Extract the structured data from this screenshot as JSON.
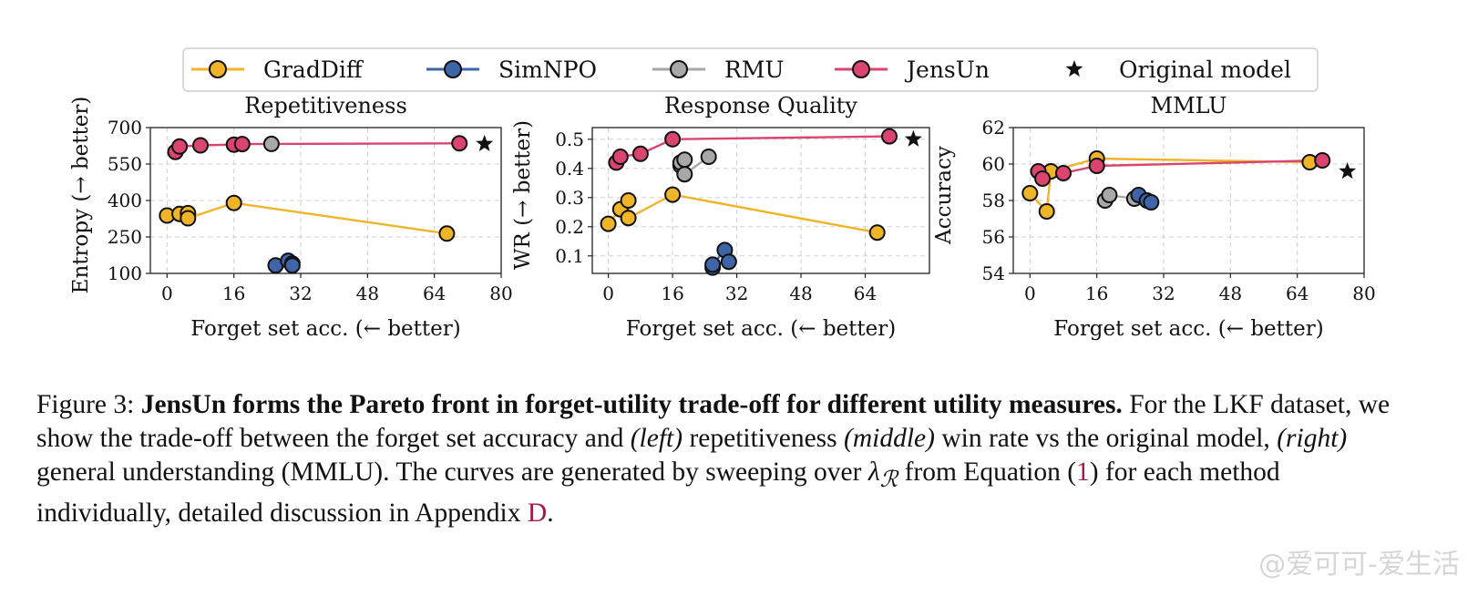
{
  "legend": {
    "items": [
      {
        "label": "GradDiff",
        "color": "#f0b429",
        "type": "line"
      },
      {
        "label": "SimNPO",
        "color": "#3f64a8",
        "type": "line"
      },
      {
        "label": "RMU",
        "color": "#a8a8a8",
        "type": "line"
      },
      {
        "label": "JensUn",
        "color": "#d9456f",
        "type": "line"
      },
      {
        "label": "Original model",
        "color": "#111111",
        "type": "star"
      }
    ]
  },
  "chart_data": [
    {
      "type": "line",
      "title": "Repetitiveness",
      "xlabel": "Forget set acc. (← better)",
      "ylabel": "Entropy (→ better)",
      "xlim": [
        -4,
        80
      ],
      "ylim": [
        100,
        700
      ],
      "xticks": [
        0,
        16,
        32,
        48,
        64,
        80
      ],
      "yticks": [
        100,
        250,
        400,
        550,
        700
      ],
      "grid": true,
      "series": [
        {
          "name": "GradDiff",
          "color": "#f0b429",
          "points": [
            [
              0,
              338
            ],
            [
              3,
              345
            ],
            [
              5,
              348
            ],
            [
              5,
              327
            ],
            [
              16,
              390
            ],
            [
              67,
              264
            ]
          ]
        },
        {
          "name": "SimNPO",
          "color": "#3f64a8",
          "points": [
            [
              26,
              133
            ],
            [
              29,
              152
            ],
            [
              30,
              140
            ],
            [
              30,
              133
            ]
          ]
        },
        {
          "name": "RMU",
          "color": "#a8a8a8",
          "points": [
            [
              25,
              633
            ]
          ]
        },
        {
          "name": "JensUn",
          "color": "#d9456f",
          "points": [
            [
              2,
              600
            ],
            [
              3,
              622
            ],
            [
              8,
              627
            ],
            [
              16,
              630
            ],
            [
              18,
              632
            ],
            [
              70,
              635
            ]
          ]
        }
      ],
      "original": [
        76,
        633
      ]
    },
    {
      "type": "line",
      "title": "Response Quality",
      "xlabel": "Forget set acc. (← better)",
      "ylabel": "WR (→ better)",
      "xlim": [
        -4,
        80
      ],
      "ylim": [
        0.04,
        0.54
      ],
      "xticks": [
        0,
        16,
        32,
        48,
        64
      ],
      "yticks": [
        0.1,
        0.2,
        0.3,
        0.4,
        0.5
      ],
      "grid": true,
      "series": [
        {
          "name": "GradDiff",
          "color": "#f0b429",
          "points": [
            [
              0,
              0.21
            ],
            [
              3,
              0.26
            ],
            [
              5,
              0.29
            ],
            [
              5,
              0.23
            ],
            [
              16,
              0.31
            ],
            [
              67,
              0.18
            ]
          ]
        },
        {
          "name": "SimNPO",
          "color": "#3f64a8",
          "points": [
            [
              26,
              0.06
            ],
            [
              26,
              0.07
            ],
            [
              29,
              0.12
            ],
            [
              30,
              0.08
            ]
          ]
        },
        {
          "name": "RMU",
          "color": "#a8a8a8",
          "points": [
            [
              18,
              0.41
            ],
            [
              18,
              0.42
            ],
            [
              19,
              0.43
            ],
            [
              19,
              0.38
            ],
            [
              25,
              0.44
            ]
          ]
        },
        {
          "name": "JensUn",
          "color": "#d9456f",
          "points": [
            [
              2,
              0.42
            ],
            [
              3,
              0.44
            ],
            [
              8,
              0.45
            ],
            [
              16,
              0.5
            ],
            [
              70,
              0.51
            ]
          ]
        }
      ],
      "original": [
        76,
        0.5
      ]
    },
    {
      "type": "line",
      "title": "MMLU",
      "xlabel": "Forget set acc. (← better)",
      "ylabel": "Accuracy",
      "xlim": [
        -4,
        80
      ],
      "ylim": [
        54,
        62
      ],
      "xticks": [
        0,
        16,
        32,
        48,
        64,
        80
      ],
      "yticks": [
        54,
        56,
        58,
        60,
        62
      ],
      "grid": true,
      "series": [
        {
          "name": "GradDiff",
          "color": "#f0b429",
          "points": [
            [
              0,
              58.4
            ],
            [
              4,
              57.4
            ],
            [
              5,
              59.6
            ],
            [
              16,
              60.3
            ],
            [
              67,
              60.1
            ]
          ]
        },
        {
          "name": "SimNPO",
          "color": "#3f64a8",
          "points": [
            [
              26,
              58.3
            ],
            [
              28,
              58.0
            ],
            [
              29,
              57.9
            ]
          ]
        },
        {
          "name": "RMU",
          "color": "#a8a8a8",
          "points": [
            [
              18,
              58.0
            ],
            [
              19,
              58.3
            ],
            [
              25,
              58.1
            ]
          ]
        },
        {
          "name": "JensUn",
          "color": "#d9456f",
          "points": [
            [
              2,
              59.6
            ],
            [
              3,
              59.2
            ],
            [
              8,
              59.5
            ],
            [
              16,
              59.9
            ],
            [
              70,
              60.2
            ]
          ]
        }
      ],
      "original": [
        76,
        59.6
      ]
    }
  ],
  "caption": {
    "label": "Figure 3: ",
    "bold": "JensUn forms the Pareto front in forget-utility trade-off for different utility measures.",
    "t1": " For the LKF dataset, we show the trade-off between the forget set accuracy and ",
    "left": "(left)",
    "t2": " repetitiveness ",
    "middle": "(middle)",
    "t3": " win rate vs the original model, ",
    "right": "(right)",
    "t4": " general understanding (MMLU). The curves are generated by sweeping over ",
    "lambda": "λ",
    "lambda_sub": "ℛ",
    "t5": " from Equation (",
    "eq": "1",
    "t6": ") for each method individually, detailed discussion in Appendix ",
    "appendix": "D",
    "t7": "."
  },
  "watermark": "@爱可可-爱生活"
}
